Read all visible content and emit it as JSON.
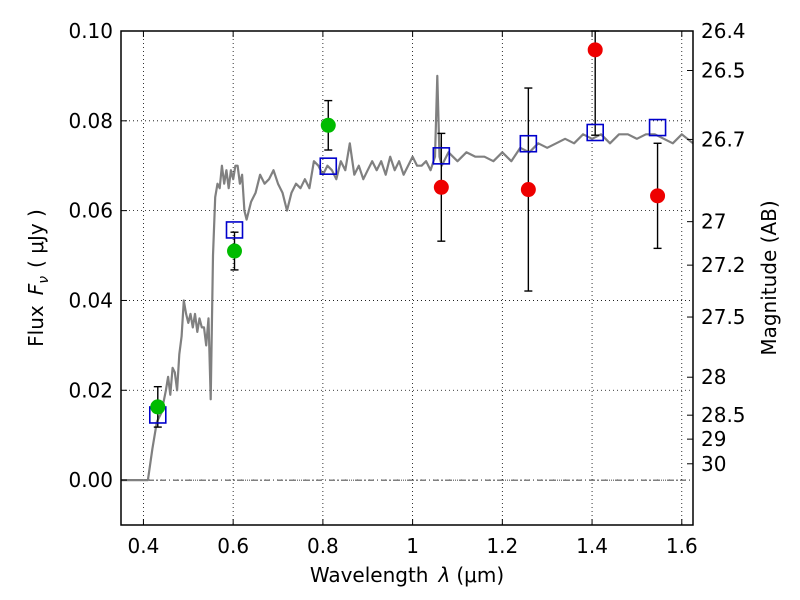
{
  "chart_data": {
    "type": "scatter",
    "xlabel_prefix": "Wavelength",
    "xlabel_symbol": "λ",
    "xlabel_units": "(μm)",
    "ylabel_prefix": "Flux",
    "ylabel_symbol_main": "F",
    "ylabel_symbol_sub": "ν",
    "ylabel_units": "( μJy )",
    "y2label": "Magnitude (AB)",
    "xlim": [
      0.35,
      1.625
    ],
    "ylim": [
      -0.01,
      0.1
    ],
    "grid": true,
    "x_ticks": [
      0.4,
      0.6,
      0.8,
      1.0,
      1.2,
      1.4,
      1.6
    ],
    "x_tick_labels": [
      "0.4",
      "0.6",
      "0.8",
      "1",
      "1.2",
      "1.4",
      "1.6"
    ],
    "y_ticks": [
      0.0,
      0.02,
      0.04,
      0.06,
      0.08,
      0.1
    ],
    "y_tick_labels": [
      "0.00",
      "0.02",
      "0.04",
      "0.06",
      "0.08",
      "0.10"
    ],
    "magnitude_ticks": [
      "26.4",
      "26.5",
      "26.7",
      "27",
      "27.2",
      "27.5",
      "28",
      "28.5",
      "29",
      "30"
    ],
    "model_spectrum": {
      "color": "#808080",
      "x": [
        0.35,
        0.41,
        0.42,
        0.43,
        0.44,
        0.45,
        0.455,
        0.46,
        0.465,
        0.47,
        0.475,
        0.48,
        0.485,
        0.49,
        0.495,
        0.5,
        0.505,
        0.51,
        0.515,
        0.52,
        0.525,
        0.53,
        0.535,
        0.54,
        0.545,
        0.55,
        0.555,
        0.56,
        0.565,
        0.57,
        0.575,
        0.58,
        0.585,
        0.59,
        0.595,
        0.6,
        0.605,
        0.61,
        0.615,
        0.62,
        0.625,
        0.63,
        0.64,
        0.65,
        0.66,
        0.67,
        0.68,
        0.69,
        0.7,
        0.71,
        0.72,
        0.73,
        0.74,
        0.75,
        0.76,
        0.77,
        0.78,
        0.79,
        0.8,
        0.81,
        0.82,
        0.83,
        0.84,
        0.85,
        0.86,
        0.87,
        0.88,
        0.89,
        0.9,
        0.91,
        0.92,
        0.93,
        0.94,
        0.95,
        0.96,
        0.97,
        0.98,
        0.99,
        1.0,
        1.01,
        1.02,
        1.03,
        1.04,
        1.05,
        1.055,
        1.06,
        1.065,
        1.07,
        1.08,
        1.1,
        1.12,
        1.14,
        1.16,
        1.18,
        1.2,
        1.22,
        1.24,
        1.26,
        1.28,
        1.3,
        1.32,
        1.34,
        1.36,
        1.38,
        1.4,
        1.42,
        1.44,
        1.46,
        1.48,
        1.5,
        1.52,
        1.54,
        1.56,
        1.58,
        1.6,
        1.625
      ],
      "y": [
        0.0,
        0.0,
        0.007,
        0.013,
        0.015,
        0.02,
        0.023,
        0.019,
        0.025,
        0.024,
        0.02,
        0.028,
        0.032,
        0.04,
        0.037,
        0.035,
        0.037,
        0.034,
        0.037,
        0.033,
        0.036,
        0.034,
        0.034,
        0.03,
        0.036,
        0.018,
        0.05,
        0.063,
        0.066,
        0.065,
        0.07,
        0.066,
        0.069,
        0.065,
        0.069,
        0.067,
        0.07,
        0.07,
        0.066,
        0.068,
        0.06,
        0.058,
        0.062,
        0.064,
        0.068,
        0.066,
        0.067,
        0.069,
        0.066,
        0.064,
        0.06,
        0.064,
        0.066,
        0.065,
        0.067,
        0.065,
        0.071,
        0.07,
        0.068,
        0.07,
        0.069,
        0.067,
        0.071,
        0.069,
        0.075,
        0.068,
        0.07,
        0.067,
        0.069,
        0.071,
        0.069,
        0.071,
        0.068,
        0.072,
        0.069,
        0.071,
        0.068,
        0.07,
        0.072,
        0.07,
        0.07,
        0.071,
        0.069,
        0.072,
        0.09,
        0.072,
        0.07,
        0.071,
        0.073,
        0.071,
        0.073,
        0.072,
        0.072,
        0.071,
        0.073,
        0.071,
        0.074,
        0.073,
        0.075,
        0.074,
        0.075,
        0.076,
        0.075,
        0.077,
        0.076,
        0.077,
        0.075,
        0.077,
        0.077,
        0.076,
        0.077,
        0.077,
        0.076,
        0.075,
        0.077,
        0.075
      ]
    },
    "model_points": {
      "color": "#0000cc",
      "x": [
        0.432,
        0.603,
        0.812,
        1.064,
        1.258,
        1.407,
        1.546
      ],
      "y": [
        0.0145,
        0.0557,
        0.0699,
        0.0722,
        0.0749,
        0.0774,
        0.0785
      ]
    },
    "observed_green": {
      "color": "#00bb00",
      "x": [
        0.432,
        0.603,
        0.812
      ],
      "y": [
        0.0163,
        0.051,
        0.079
      ],
      "err": [
        0.0045,
        0.0042,
        0.0055
      ]
    },
    "observed_red": {
      "color": "#ee0000",
      "x": [
        1.064,
        1.258,
        1.407,
        1.546
      ],
      "y": [
        0.0652,
        0.0647,
        0.0958,
        0.0633
      ],
      "err": [
        0.012,
        0.0226,
        0.019,
        0.0117
      ]
    }
  }
}
